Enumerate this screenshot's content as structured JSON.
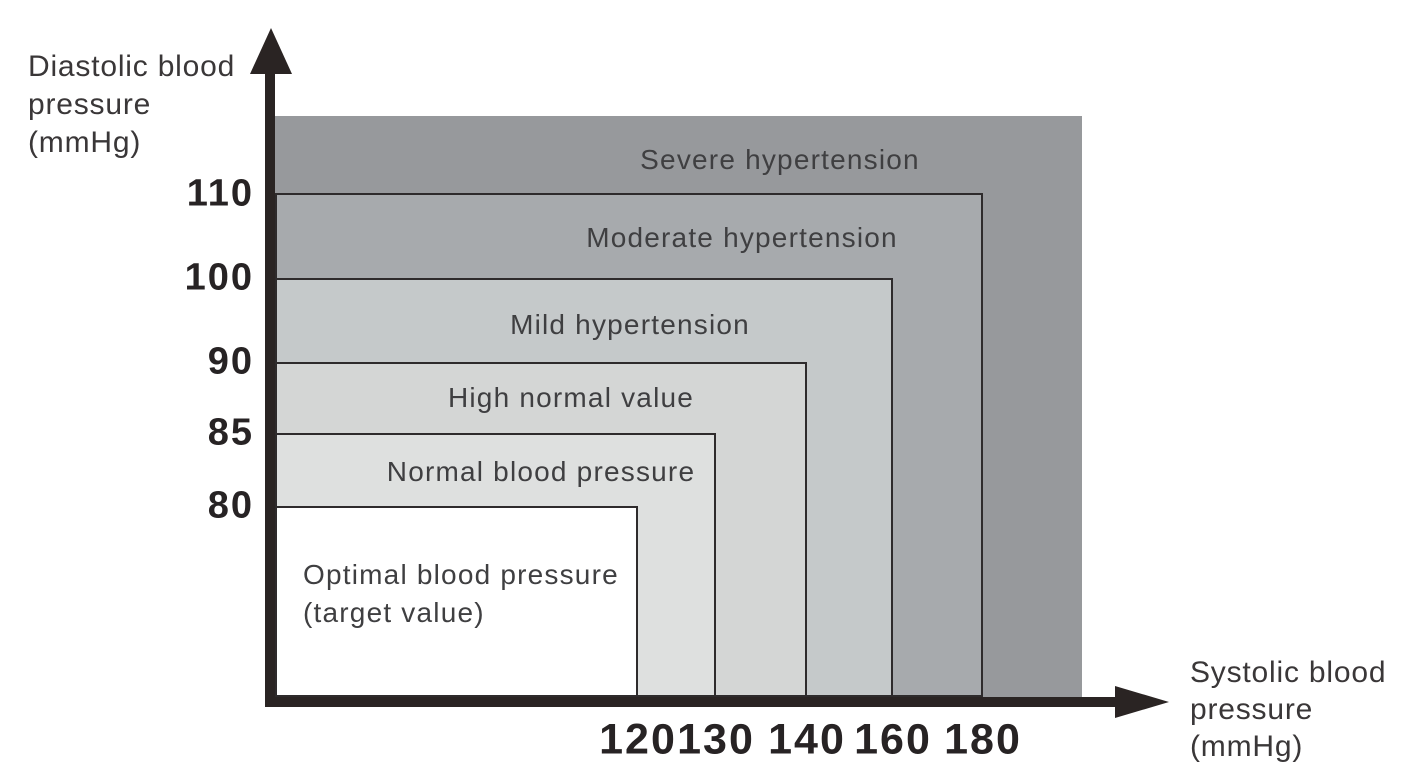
{
  "chart_data": {
    "type": "area",
    "variant": "nested-rectangle-classification",
    "title": "",
    "xlabel": "Systolic blood pressure (mmHg)",
    "ylabel": "Diastolic blood pressure (mmHg)",
    "xlabel_lines": [
      "Systolic blood",
      "pressure",
      "(mmHg)"
    ],
    "ylabel_lines": [
      "Diastolic blood",
      "pressure",
      "(mmHg)"
    ],
    "x_ticks": [
      "120",
      "130",
      "140",
      "160",
      "180"
    ],
    "y_ticks": [
      "110",
      "100",
      "90",
      "85",
      "80"
    ],
    "axis_color": "#2a2423",
    "band_border_color": "#2e2b2c",
    "grid": false,
    "bands": [
      {
        "label": "Severe hypertension",
        "systolic_min": 180,
        "diastolic_min": 110,
        "systolic_max": null,
        "diastolic_max": null,
        "color": "#97999c"
      },
      {
        "label": "Moderate hypertension",
        "systolic_max": 180,
        "diastolic_max": 110,
        "color": "#a7aaad"
      },
      {
        "label": "Mild hypertension",
        "systolic_max": 160,
        "diastolic_max": 100,
        "color": "#c5c9ca"
      },
      {
        "label": "High normal value",
        "systolic_max": 140,
        "diastolic_max": 90,
        "color": "#d4d6d5"
      },
      {
        "label": "Normal blood pressure",
        "systolic_max": 130,
        "diastolic_max": 85,
        "color": "#dee0df"
      },
      {
        "label": "Optimal blood pressure (target value)",
        "systolic_max": 120,
        "diastolic_max": 80,
        "color": "#ffffff"
      }
    ]
  }
}
